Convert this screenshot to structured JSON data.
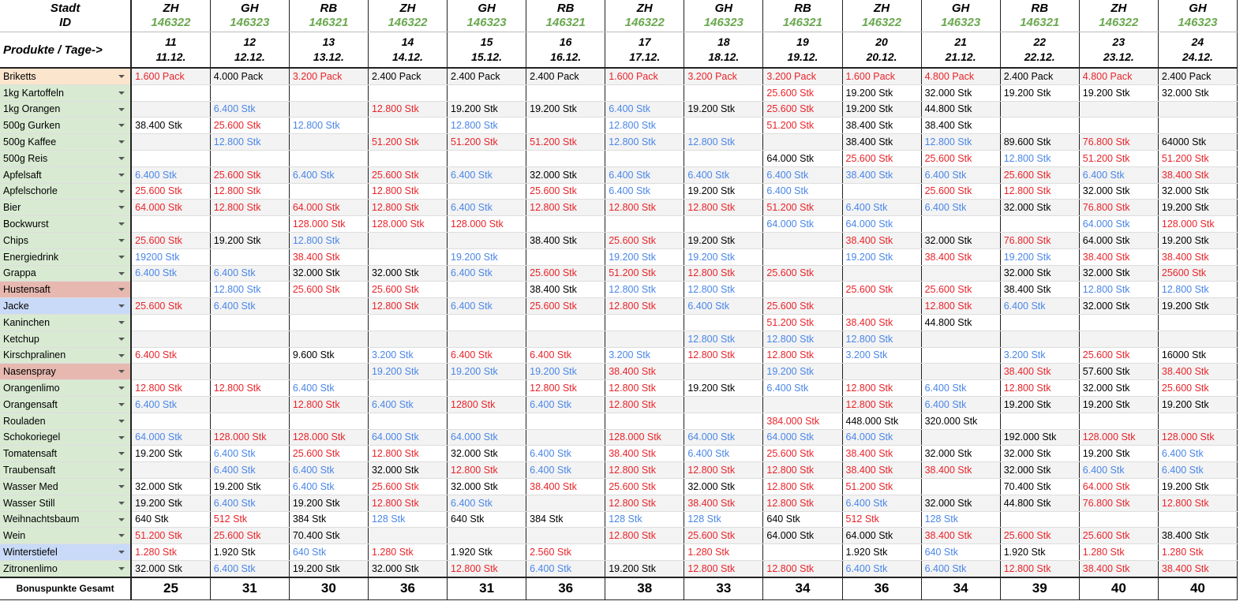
{
  "header": {
    "city_label": "Stadt",
    "id_label": "ID",
    "products_label": "Produkte / Tage->",
    "columns": [
      {
        "city": "ZH",
        "id": "146322",
        "day": "11",
        "date": "11.12."
      },
      {
        "city": "GH",
        "id": "146323",
        "day": "12",
        "date": "12.12."
      },
      {
        "city": "RB",
        "id": "146321",
        "day": "13",
        "date": "13.12."
      },
      {
        "city": "ZH",
        "id": "146322",
        "day": "14",
        "date": "14.12."
      },
      {
        "city": "GH",
        "id": "146323",
        "day": "15",
        "date": "15.12."
      },
      {
        "city": "RB",
        "id": "146321",
        "day": "16",
        "date": "16.12."
      },
      {
        "city": "ZH",
        "id": "146322",
        "day": "17",
        "date": "17.12."
      },
      {
        "city": "GH",
        "id": "146323",
        "day": "18",
        "date": "18.12."
      },
      {
        "city": "RB",
        "id": "146321",
        "day": "19",
        "date": "19.12."
      },
      {
        "city": "ZH",
        "id": "146322",
        "day": "20",
        "date": "20.12."
      },
      {
        "city": "GH",
        "id": "146323",
        "day": "21",
        "date": "21.12."
      },
      {
        "city": "RB",
        "id": "146321",
        "day": "22",
        "date": "22.12."
      },
      {
        "city": "ZH",
        "id": "146322",
        "day": "23",
        "date": "23.12."
      },
      {
        "city": "GH",
        "id": "146323",
        "day": "24",
        "date": "24.12."
      }
    ]
  },
  "rows": [
    {
      "product": "Briketts",
      "tag": "orange",
      "cells": [
        "1.600 Pack",
        "4.000 Pack",
        "3.200 Pack",
        "2.400 Pack",
        "2.400 Pack",
        "2.400 Pack",
        "1.600 Pack",
        "3.200 Pack",
        "3.200 Pack",
        "1.600 Pack",
        "4.800 Pack",
        "2.400 Pack",
        "4.800 Pack",
        "2.400 Pack"
      ],
      "colors": [
        "r",
        "k",
        "r",
        "k",
        "k",
        "k",
        "r",
        "r",
        "r",
        "r",
        "r",
        "k",
        "r",
        "k"
      ]
    },
    {
      "product": "1kg Kartoffeln",
      "tag": "green",
      "cells": [
        null,
        null,
        null,
        null,
        null,
        null,
        null,
        null,
        "25.600 Stk",
        "19.200 Stk",
        "32.000 Stk",
        "19.200 Stk",
        "19.200 Stk",
        "32.000 Stk"
      ],
      "colors": [
        null,
        null,
        null,
        null,
        null,
        null,
        null,
        null,
        "r",
        "k",
        "k",
        "k",
        "k",
        "k"
      ]
    },
    {
      "product": "1kg Orangen",
      "tag": "green",
      "cells": [
        null,
        "6.400 Stk",
        null,
        "12.800 Stk",
        "19.200 Stk",
        "19.200 Stk",
        "6.400 Stk",
        "19.200 Stk",
        "25.600 Stk",
        "19.200 Stk",
        "44.800 Stk",
        null,
        null,
        null
      ],
      "colors": [
        null,
        "b",
        null,
        "r",
        "k",
        "k",
        "b",
        "k",
        "r",
        "k",
        "k",
        null,
        null,
        null
      ]
    },
    {
      "product": "500g Gurken",
      "tag": "green",
      "cells": [
        "38.400 Stk",
        "25.600 Stk",
        "12.800 Stk",
        null,
        "12.800 Stk",
        null,
        "12.800 Stk",
        null,
        "51.200 Stk",
        "38.400 Stk",
        "38.400 Stk",
        null,
        null,
        null
      ],
      "colors": [
        "k",
        "r",
        "b",
        null,
        "b",
        null,
        "b",
        null,
        "r",
        "k",
        "k",
        null,
        null,
        null
      ]
    },
    {
      "product": "500g Kaffee",
      "tag": "green",
      "cells": [
        null,
        "12.800 Stk",
        null,
        "51.200 Stk",
        "51.200 Stk",
        "51.200 Stk",
        "12.800 Stk",
        "12.800 Stk",
        null,
        "38.400 Stk",
        "12.800 Stk",
        "89.600 Stk",
        "76.800 Stk",
        "64000 Stk"
      ],
      "colors": [
        null,
        "b",
        null,
        "r",
        "r",
        "r",
        "b",
        "b",
        null,
        "k",
        "b",
        "k",
        "r",
        "k"
      ]
    },
    {
      "product": "500g Reis",
      "tag": "green",
      "cells": [
        null,
        null,
        null,
        null,
        null,
        null,
        null,
        null,
        "64.000 Stk",
        "25.600 Stk",
        "25.600 Stk",
        "12.800 Stk",
        "51.200 Stk",
        "51.200 Stk"
      ],
      "colors": [
        null,
        null,
        null,
        null,
        null,
        null,
        null,
        null,
        "k",
        "r",
        "r",
        "b",
        "r",
        "r"
      ]
    },
    {
      "product": "Apfelsaft",
      "tag": "green",
      "cells": [
        "6.400 Stk",
        "25.600 Stk",
        "6.400 Stk",
        "25.600 Stk",
        "6.400 Stk",
        "32.000 Stk",
        "6.400 Stk",
        "6.400 Stk",
        "6.400 Stk",
        "38.400 Stk",
        "6.400 Stk",
        "25.600 Stk",
        "6.400 Stk",
        "38.400 Stk"
      ],
      "colors": [
        "b",
        "r",
        "b",
        "r",
        "b",
        "k",
        "b",
        "b",
        "b",
        "b",
        "b",
        "r",
        "b",
        "r"
      ]
    },
    {
      "product": "Apfelschorle",
      "tag": "green",
      "cells": [
        "25.600 Stk",
        "12.800 Stk",
        null,
        "12.800 Stk",
        null,
        "25.600 Stk",
        "6.400 Stk",
        "19.200 Stk",
        "6.400 Stk",
        null,
        "25.600 Stk",
        "12.800 Stk",
        "32.000 Stk",
        "32.000 Stk"
      ],
      "colors": [
        "r",
        "r",
        null,
        "r",
        null,
        "r",
        "b",
        "k",
        "b",
        null,
        "r",
        "r",
        "k",
        "k"
      ]
    },
    {
      "product": "Bier",
      "tag": "green",
      "cells": [
        "64.000 Stk",
        "12.800 Stk",
        "64.000 Stk",
        "12.800 Stk",
        "6.400 Stk",
        "12.800 Stk",
        "12.800 Stk",
        "12.800 Stk",
        "51.200 Stk",
        "6.400 Stk",
        "6.400 Stk",
        "32.000 Stk",
        "76.800 Stk",
        "19.200 Stk"
      ],
      "colors": [
        "r",
        "r",
        "r",
        "r",
        "b",
        "r",
        "r",
        "r",
        "r",
        "b",
        "b",
        "k",
        "r",
        "k"
      ]
    },
    {
      "product": "Bockwurst",
      "tag": "green",
      "cells": [
        null,
        null,
        "128.000 Stk",
        "128.000 Stk",
        "128.000 Stk",
        null,
        null,
        null,
        "64.000 Stk",
        "64.000 Stk",
        null,
        null,
        "64.000 Stk",
        "128.000 Stk"
      ],
      "colors": [
        null,
        null,
        "r",
        "r",
        "r",
        null,
        null,
        null,
        "b",
        "b",
        null,
        null,
        "b",
        "r"
      ]
    },
    {
      "product": "Chips",
      "tag": "green",
      "cells": [
        "25.600 Stk",
        "19.200 Stk",
        "12.800 Stk",
        null,
        null,
        "38.400 Stk",
        "25.600 Stk",
        "19.200 Stk",
        null,
        "38.400 Stk",
        "32.000 Stk",
        "76.800 Stk",
        "64.000 Stk",
        "19.200 Stk"
      ],
      "colors": [
        "r",
        "k",
        "b",
        null,
        null,
        "k",
        "r",
        "k",
        null,
        "r",
        "k",
        "r",
        "k",
        "k"
      ]
    },
    {
      "product": "Energiedrink",
      "tag": "green",
      "cells": [
        "19200 Stk",
        null,
        "38.400 Stk",
        null,
        "19.200 Stk",
        null,
        "19.200 Stk",
        "19.200 Stk",
        null,
        "19.200 Stk",
        "38.400 Stk",
        "19.200 Stk",
        "38.400 Stk",
        "38.400 Stk"
      ],
      "colors": [
        "b",
        null,
        "r",
        null,
        "b",
        null,
        "b",
        "b",
        null,
        "b",
        "r",
        "b",
        "r",
        "r"
      ]
    },
    {
      "product": "Grappa",
      "tag": "green",
      "cells": [
        "6.400 Stk",
        "6.400 Stk",
        "32.000 Stk",
        "32.000 Stk",
        "6.400 Stk",
        "25.600 Stk",
        "51.200 Stk",
        "12.800 Stk",
        "25.600 Stk",
        null,
        null,
        "32.000 Stk",
        "32.000 Stk",
        "25600 Stk"
      ],
      "colors": [
        "b",
        "b",
        "k",
        "k",
        "b",
        "r",
        "r",
        "r",
        "r",
        null,
        null,
        "k",
        "k",
        "r"
      ]
    },
    {
      "product": "Hustensaft",
      "tag": "red",
      "cells": [
        null,
        "12.800 Stk",
        "25.600 Stk",
        "25.600 Stk",
        null,
        "38.400 Stk",
        "12.800 Stk",
        "12.800 Stk",
        null,
        "25.600 Stk",
        "25.600 Stk",
        "38.400 Stk",
        "12.800 Stk",
        "12.800 Stk"
      ],
      "colors": [
        null,
        "b",
        "r",
        "r",
        null,
        "k",
        "b",
        "b",
        null,
        "r",
        "r",
        "k",
        "b",
        "b"
      ]
    },
    {
      "product": "Jacke",
      "tag": "blue",
      "cells": [
        "25.600 Stk",
        "6.400 Stk",
        null,
        "12.800 Stk",
        "6.400 Stk",
        "25.600 Stk",
        "12.800 Stk",
        "6.400 Stk",
        "25.600 Stk",
        null,
        "12.800 Stk",
        "6.400 Stk",
        "32.000 Stk",
        "19.200 Stk"
      ],
      "colors": [
        "r",
        "b",
        null,
        "r",
        "b",
        "r",
        "r",
        "b",
        "r",
        null,
        "r",
        "b",
        "k",
        "k"
      ]
    },
    {
      "product": "Kaninchen",
      "tag": "green",
      "cells": [
        null,
        null,
        null,
        null,
        null,
        null,
        null,
        null,
        "51.200 Stk",
        "38.400 Stk",
        "44.800 Stk",
        null,
        null,
        null
      ],
      "colors": [
        null,
        null,
        null,
        null,
        null,
        null,
        null,
        null,
        "r",
        "r",
        "k",
        null,
        null,
        null
      ]
    },
    {
      "product": "Ketchup",
      "tag": "green",
      "cells": [
        null,
        null,
        null,
        null,
        null,
        null,
        null,
        "12.800 Stk",
        "12.800 Stk",
        "12.800 Stk",
        null,
        null,
        null,
        null
      ],
      "colors": [
        null,
        null,
        null,
        null,
        null,
        null,
        null,
        "b",
        "b",
        "b",
        null,
        null,
        null,
        null
      ]
    },
    {
      "product": "Kirschpralinen",
      "tag": "green",
      "cells": [
        "6.400 Stk",
        null,
        "9.600 Stk",
        "3.200 Stk",
        "6.400 Stk",
        "6.400 Stk",
        "3.200 Stk",
        "12.800 Stk",
        "12.800 Stk",
        "3.200 Stk",
        null,
        "3.200 Stk",
        "25.600 Stk",
        "16000 Stk"
      ],
      "colors": [
        "r",
        null,
        "k",
        "b",
        "r",
        "r",
        "b",
        "r",
        "r",
        "b",
        null,
        "b",
        "r",
        "k"
      ]
    },
    {
      "product": "Nasenspray",
      "tag": "red",
      "cells": [
        null,
        null,
        null,
        "19.200 Stk",
        "19.200 Stk",
        "19.200 Stk",
        "38.400 Stk",
        null,
        "19.200 Stk",
        null,
        null,
        "38.400 Stk",
        "57.600 Stk",
        "38.400 Stk"
      ],
      "colors": [
        null,
        null,
        null,
        "b",
        "b",
        "b",
        "r",
        null,
        "b",
        null,
        null,
        "r",
        "k",
        "r"
      ]
    },
    {
      "product": "Orangenlimo",
      "tag": "green",
      "cells": [
        "12.800 Stk",
        "12.800 Stk",
        "6.400 Stk",
        null,
        null,
        "12.800 Stk",
        "12.800 Stk",
        "19.200 Stk",
        "6.400 Stk",
        "12.800 Stk",
        "6.400 Stk",
        "12.800 Stk",
        "32.000 Stk",
        "25.600 Stk"
      ],
      "colors": [
        "r",
        "r",
        "b",
        null,
        null,
        "r",
        "r",
        "k",
        "b",
        "r",
        "b",
        "r",
        "k",
        "r"
      ]
    },
    {
      "product": "Orangensaft",
      "tag": "green",
      "cells": [
        "6.400 Stk",
        null,
        "12.800 Stk",
        "6.400 Stk",
        "12800 Stk",
        "6.400 Stk",
        "12.800 Stk",
        null,
        null,
        "12.800 Stk",
        "6.400 Stk",
        "19.200 Stk",
        "19.200 Stk",
        "19.200 Stk"
      ],
      "colors": [
        "b",
        null,
        "r",
        "b",
        "r",
        "b",
        "r",
        null,
        null,
        "r",
        "b",
        "k",
        "k",
        "k"
      ]
    },
    {
      "product": "Rouladen",
      "tag": "green",
      "cells": [
        null,
        null,
        null,
        null,
        null,
        null,
        null,
        null,
        "384.000 Stk",
        "448.000 Stk",
        "320.000 Stk",
        null,
        null,
        null
      ],
      "colors": [
        null,
        null,
        null,
        null,
        null,
        null,
        null,
        null,
        "r",
        "k",
        "k",
        null,
        null,
        null
      ]
    },
    {
      "product": "Schokoriegel",
      "tag": "green",
      "cells": [
        "64.000 Stk",
        "128.000 Stk",
        "128.000 Stk",
        "64.000 Stk",
        "64.000 Stk",
        null,
        "128.000 Stk",
        "64.000 Stk",
        "64.000 Stk",
        "64.000 Stk",
        null,
        "192.000 Stk",
        "128.000 Stk",
        "128.000 Stk"
      ],
      "colors": [
        "b",
        "r",
        "r",
        "b",
        "b",
        null,
        "r",
        "b",
        "b",
        "b",
        null,
        "k",
        "r",
        "r"
      ]
    },
    {
      "product": "Tomatensaft",
      "tag": "green",
      "cells": [
        "19.200 Stk",
        "6.400 Stk",
        "25.600 Stk",
        "12.800 Stk",
        "32.000 Stk",
        "6.400 Stk",
        "38.400 Stk",
        "6.400 Stk",
        "25.600 Stk",
        "38.400 Stk",
        "32.000 Stk",
        "32.000 Stk",
        "19.200 Stk",
        "6.400 Stk"
      ],
      "colors": [
        "k",
        "b",
        "r",
        "r",
        "k",
        "b",
        "r",
        "b",
        "r",
        "r",
        "k",
        "k",
        "k",
        "b"
      ]
    },
    {
      "product": "Traubensaft",
      "tag": "green",
      "cells": [
        null,
        "6.400 Stk",
        "6.400 Stk",
        "32.000 Stk",
        "12.800 Stk",
        "6.400 Stk",
        "12.800 Stk",
        "12.800 Stk",
        "12.800 Stk",
        "38.400 Stk",
        "38.400 Stk",
        "32.000 Stk",
        "6.400 Stk",
        "6.400 Stk"
      ],
      "colors": [
        null,
        "b",
        "b",
        "k",
        "r",
        "b",
        "r",
        "r",
        "r",
        "r",
        "r",
        "k",
        "b",
        "b"
      ]
    },
    {
      "product": "Wasser Med",
      "tag": "green",
      "cells": [
        "32.000 Stk",
        "19.200 Stk",
        "6.400 Stk",
        "25.600 Stk",
        "32.000 Stk",
        "38.400 Stk",
        "25.600 Stk",
        "32.000 Stk",
        "12.800 Stk",
        "51.200 Stk",
        null,
        "70.400 Stk",
        "64.000 Stk",
        "19.200 Stk"
      ],
      "colors": [
        "k",
        "k",
        "b",
        "r",
        "k",
        "r",
        "r",
        "k",
        "r",
        "r",
        null,
        "k",
        "r",
        "k"
      ]
    },
    {
      "product": "Wasser Still",
      "tag": "green",
      "cells": [
        "19.200 Stk",
        "6.400 Stk",
        "19.200 Stk",
        "12.800 Stk",
        "6.400 Stk",
        null,
        "12.800 Stk",
        "38.400 Stk",
        "12.800 Stk",
        "6.400 Stk",
        "32.000 Stk",
        "44.800 Stk",
        "76.800 Stk",
        "12.800 Stk"
      ],
      "colors": [
        "k",
        "b",
        "k",
        "r",
        "b",
        null,
        "r",
        "r",
        "r",
        "b",
        "k",
        "k",
        "r",
        "r"
      ]
    },
    {
      "product": "Weihnachtsbaum",
      "tag": "green",
      "cells": [
        "640 Stk",
        "512 Stk",
        "384 Stk",
        "128 Stk",
        "640 Stk",
        "384 Stk",
        "128 Stk",
        "128 Stk",
        "640 Stk",
        "512 Stk",
        "128 Stk",
        null,
        null,
        null
      ],
      "colors": [
        "k",
        "r",
        "k",
        "b",
        "k",
        "k",
        "b",
        "b",
        "k",
        "r",
        "b",
        null,
        null,
        null
      ]
    },
    {
      "product": "Wein",
      "tag": "green",
      "cells": [
        "51.200 Stk",
        "25.600 Stk",
        "70.400 Stk",
        null,
        null,
        null,
        "12.800 Stk",
        "25.600 Stk",
        "64.000 Stk",
        "64.000 Stk",
        "38.400 Stk",
        "25.600 Stk",
        "25.600 Stk",
        "38.400 Stk"
      ],
      "colors": [
        "r",
        "r",
        "k",
        null,
        null,
        null,
        "r",
        "r",
        "k",
        "k",
        "r",
        "r",
        "r",
        "k"
      ]
    },
    {
      "product": "Winterstiefel",
      "tag": "blue",
      "cells": [
        "1.280 Stk",
        "1.920 Stk",
        "640 Stk",
        "1.280 Stk",
        "1.920 Stk",
        "2.560 Stk",
        null,
        "1.280 Stk",
        null,
        "1.920 Stk",
        "640 Stk",
        "1.920 Stk",
        "1.280 Stk",
        "1.280 Stk"
      ],
      "colors": [
        "r",
        "k",
        "b",
        "r",
        "k",
        "r",
        null,
        "r",
        null,
        "k",
        "b",
        "k",
        "r",
        "r"
      ]
    },
    {
      "product": "Zitronenlimo",
      "tag": "green",
      "cells": [
        "32.000 Stk",
        "6.400 Stk",
        "19.200 Stk",
        "32.000 Stk",
        "12.800 Stk",
        "6.400 Stk",
        "19.200 Stk",
        "12.800 Stk",
        "12.800 Stk",
        "6.400 Stk",
        "6.400 Stk",
        "12.800 Stk",
        "38.400 Stk",
        "38.400 Stk"
      ],
      "colors": [
        "k",
        "b",
        "k",
        "k",
        "r",
        "b",
        "k",
        "r",
        "r",
        "b",
        "b",
        "r",
        "r",
        "r"
      ]
    }
  ],
  "footer": {
    "label": "Bonuspunkte Gesamt",
    "totals": [
      25,
      31,
      30,
      36,
      31,
      36,
      38,
      33,
      34,
      36,
      34,
      39,
      40,
      40
    ]
  }
}
